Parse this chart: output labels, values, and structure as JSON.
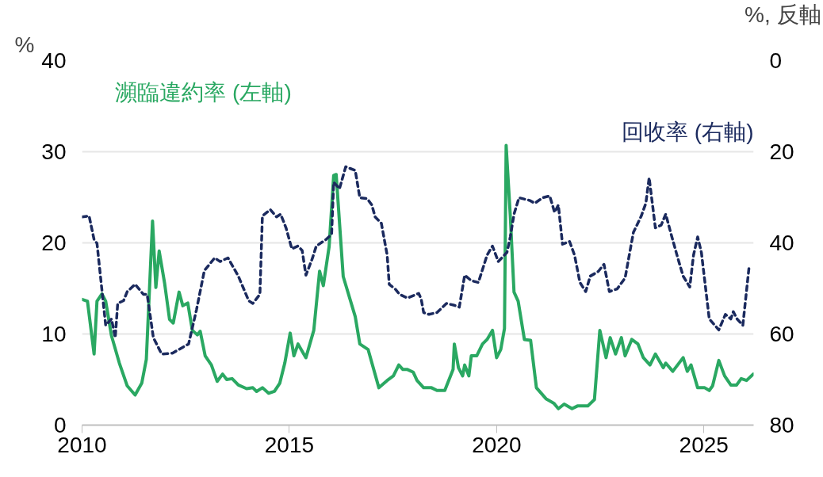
{
  "chart_data": {
    "type": "line",
    "ylabel": "%",
    "y2label": "%, 反軸",
    "xlim": [
      2010,
      2026.2
    ],
    "xticks": [
      2010,
      2015,
      2020,
      2025
    ],
    "ylim": [
      0,
      40
    ],
    "yticks": [
      0,
      10,
      20,
      30,
      40
    ],
    "y2lim": [
      80,
      0
    ],
    "y2ticks": [
      0,
      20,
      40,
      60,
      80
    ],
    "grid": "y",
    "legend": false,
    "marker": "none",
    "series": [
      {
        "name": "瀕臨違約率 (左軸)",
        "color": "#2aa862",
        "line_style": "solid",
        "x": [
          2010.0,
          2010.13,
          2010.29,
          2010.36,
          2010.48,
          2010.57,
          2010.71,
          2010.9,
          2011.09,
          2011.28,
          2011.44,
          2011.55,
          2011.7,
          2011.78,
          2011.86,
          2011.99,
          2012.11,
          2012.2,
          2012.34,
          2012.43,
          2012.55,
          2012.66,
          2012.78,
          2012.85,
          2012.97,
          2013.12,
          2013.26,
          2013.39,
          2013.49,
          2013.62,
          2013.77,
          2013.97,
          2014.12,
          2014.21,
          2014.35,
          2014.5,
          2014.64,
          2014.77,
          2014.89,
          2015.02,
          2015.11,
          2015.21,
          2015.4,
          2015.59,
          2015.73,
          2015.82,
          2015.96,
          2016.07,
          2016.13,
          2016.3,
          2016.59,
          2016.7,
          2016.9,
          2017.16,
          2017.36,
          2017.51,
          2017.64,
          2017.74,
          2017.85,
          2017.99,
          2018.08,
          2018.24,
          2018.43,
          2018.56,
          2018.75,
          2018.95,
          2018.98,
          2019.08,
          2019.18,
          2019.23,
          2019.33,
          2019.39,
          2019.52,
          2019.66,
          2019.77,
          2019.9,
          2020.0,
          2020.1,
          2020.19,
          2020.23,
          2020.33,
          2020.42,
          2020.52,
          2020.67,
          2020.82,
          2020.96,
          2021.19,
          2021.38,
          2021.49,
          2021.63,
          2021.82,
          2021.95,
          2022.2,
          2022.36,
          2022.49,
          2022.64,
          2022.74,
          2022.87,
          2023.01,
          2023.1,
          2023.26,
          2023.41,
          2023.54,
          2023.7,
          2023.83,
          2024.02,
          2024.08,
          2024.25,
          2024.5,
          2024.6,
          2024.69,
          2024.85,
          2025.02,
          2025.13,
          2025.21,
          2025.36,
          2025.5,
          2025.65,
          2025.79,
          2025.9,
          2026.03,
          2026.19
        ],
        "values": [
          13.8,
          13.6,
          7.8,
          13.6,
          14.4,
          13.6,
          9.8,
          6.8,
          4.3,
          3.3,
          4.6,
          7.2,
          22.4,
          15.1,
          19.1,
          15.6,
          11.6,
          11.2,
          14.6,
          13.1,
          13.4,
          10.4,
          9.9,
          10.3,
          7.6,
          6.6,
          4.8,
          5.6,
          5.0,
          5.1,
          4.4,
          4.0,
          4.1,
          3.7,
          4.1,
          3.5,
          3.7,
          4.6,
          6.8,
          10.1,
          7.6,
          8.9,
          7.4,
          10.4,
          16.9,
          15.3,
          19.6,
          27.4,
          27.5,
          16.3,
          11.9,
          8.9,
          8.3,
          4.1,
          4.9,
          5.4,
          6.6,
          6.1,
          6.1,
          5.8,
          4.9,
          4.1,
          4.1,
          3.8,
          3.8,
          6.1,
          8.9,
          6.3,
          5.4,
          6.6,
          5.4,
          7.6,
          7.6,
          8.9,
          9.4,
          10.4,
          7.4,
          8.3,
          10.6,
          30.7,
          23.0,
          14.6,
          13.6,
          9.4,
          9.3,
          4.1,
          2.9,
          2.4,
          1.8,
          2.3,
          1.8,
          2.1,
          2.1,
          2.8,
          10.4,
          7.4,
          9.6,
          7.8,
          9.6,
          7.6,
          9.4,
          8.9,
          7.4,
          6.6,
          7.8,
          6.3,
          6.8,
          5.9,
          7.4,
          5.9,
          6.6,
          4.1,
          4.1,
          3.8,
          4.3,
          7.1,
          5.4,
          4.4,
          4.4,
          5.1,
          4.9,
          5.6
        ]
      },
      {
        "name": "回收率 (右軸)",
        "color": "#1b2a5e",
        "line_style": "dashed",
        "axis": "y2",
        "x": [
          2010.0,
          2010.17,
          2010.29,
          2010.36,
          2010.46,
          2010.57,
          2010.71,
          2010.8,
          2010.86,
          2011.0,
          2011.09,
          2011.28,
          2011.48,
          2011.57,
          2011.72,
          2011.92,
          2012.18,
          2012.57,
          2012.76,
          2012.95,
          2013.2,
          2013.33,
          2013.52,
          2013.77,
          2014.02,
          2014.12,
          2014.29,
          2014.35,
          2014.54,
          2014.69,
          2014.79,
          2014.92,
          2015.06,
          2015.21,
          2015.31,
          2015.4,
          2015.56,
          2015.65,
          2015.88,
          2016.02,
          2016.07,
          2016.21,
          2016.36,
          2016.59,
          2016.7,
          2016.88,
          2016.99,
          2017.07,
          2017.22,
          2017.36,
          2017.41,
          2017.55,
          2017.66,
          2017.85,
          2018.12,
          2018.18,
          2018.24,
          2018.37,
          2018.56,
          2018.79,
          2018.98,
          2019.1,
          2019.23,
          2019.39,
          2019.56,
          2019.77,
          2019.9,
          2020.04,
          2020.25,
          2020.33,
          2020.42,
          2020.54,
          2020.8,
          2020.92,
          2021.11,
          2021.28,
          2021.4,
          2021.49,
          2021.59,
          2021.76,
          2021.88,
          2022.01,
          2022.15,
          2022.26,
          2022.45,
          2022.59,
          2022.72,
          2022.91,
          2023.1,
          2023.3,
          2023.49,
          2023.6,
          2023.68,
          2023.83,
          2023.97,
          2024.08,
          2024.21,
          2024.37,
          2024.5,
          2024.66,
          2024.75,
          2024.85,
          2024.94,
          2025.13,
          2025.36,
          2025.52,
          2025.65,
          2025.71,
          2025.8,
          2025.94,
          2026.09
        ],
        "values": [
          34.3,
          34.1,
          39.3,
          40.1,
          48.7,
          58.1,
          56.7,
          60.8,
          53.3,
          52.7,
          50.7,
          49.1,
          51.3,
          51.3,
          60.8,
          64.4,
          64.2,
          62.2,
          54.7,
          46.1,
          43.3,
          44.1,
          43.3,
          47.3,
          52.7,
          53.3,
          51.3,
          34.1,
          32.7,
          34.3,
          33.7,
          36.7,
          41.3,
          40.7,
          41.7,
          47.1,
          43.3,
          40.7,
          39.3,
          38.1,
          26.7,
          28.1,
          23.3,
          24.1,
          30.1,
          30.3,
          31.7,
          34.3,
          35.7,
          42.7,
          49.1,
          50.1,
          51.3,
          52.1,
          51.1,
          52.3,
          55.3,
          55.7,
          55.3,
          53.3,
          53.7,
          54.1,
          47.1,
          48.3,
          48.7,
          42.7,
          40.7,
          44.1,
          42.1,
          38.7,
          33.7,
          30.1,
          30.7,
          31.3,
          30.1,
          29.7,
          33.3,
          31.7,
          40.3,
          39.7,
          42.7,
          48.7,
          50.7,
          47.3,
          46.3,
          44.7,
          50.7,
          50.1,
          47.7,
          37.7,
          34.1,
          31.3,
          25.7,
          36.7,
          36.1,
          33.7,
          38.1,
          43.3,
          47.3,
          49.7,
          42.7,
          38.7,
          42.1,
          56.7,
          59.1,
          55.7,
          56.7,
          55.1,
          56.7,
          58.1,
          45.3
        ]
      }
    ]
  }
}
